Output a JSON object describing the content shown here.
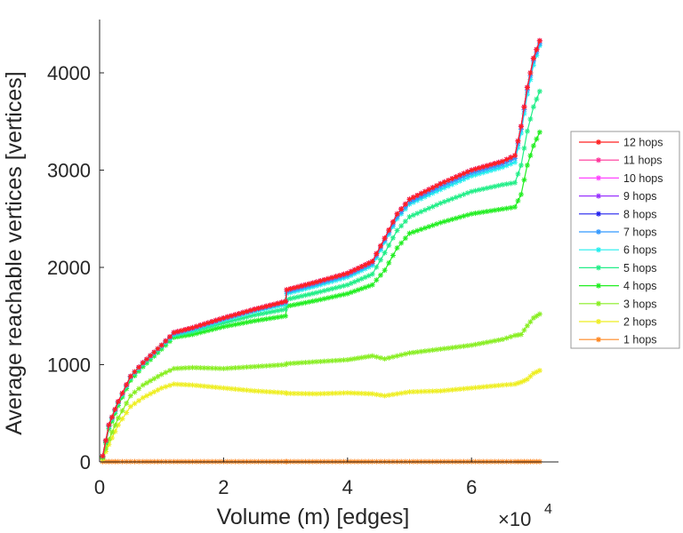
{
  "chart_data": {
    "type": "line",
    "title": "",
    "xlabel": "Volume (m) [edges]",
    "ylabel": "Average reachable vertices [vertices]",
    "x_multiplier": "×10",
    "x_multiplier_exp": "4",
    "xlim": [
      0,
      7.5
    ],
    "ylim": [
      0,
      4500
    ],
    "xticks": [
      0,
      2,
      4,
      6
    ],
    "xtick_labels": [
      "0",
      "2",
      "4",
      "6"
    ],
    "yticks": [
      0,
      1000,
      2000,
      3000,
      4000
    ],
    "ytick_labels": [
      "0",
      "1000",
      "2000",
      "3000",
      "4000"
    ],
    "grid": false,
    "legend_position": "right",
    "x": [
      0.05,
      0.15,
      0.3,
      0.5,
      0.7,
      1.0,
      1.2,
      1.5,
      2.0,
      2.5,
      3.0,
      3.02,
      3.5,
      4.0,
      4.4,
      4.6,
      4.8,
      5.0,
      5.5,
      6.0,
      6.5,
      6.7,
      6.8,
      6.9,
      7.0,
      7.1
    ],
    "series": [
      {
        "name": "12 hops",
        "color": "#ff2020",
        "values": [
          60,
          380,
          620,
          880,
          1020,
          1200,
          1330,
          1380,
          1480,
          1570,
          1650,
          1770,
          1850,
          1940,
          2060,
          2300,
          2550,
          2700,
          2860,
          3000,
          3090,
          3150,
          3450,
          3850,
          4150,
          4330
        ]
      },
      {
        "name": "11 hops",
        "color": "#ff3399",
        "values": [
          60,
          380,
          620,
          880,
          1020,
          1200,
          1330,
          1380,
          1480,
          1570,
          1650,
          1770,
          1850,
          1940,
          2060,
          2300,
          2550,
          2700,
          2860,
          3000,
          3090,
          3150,
          3450,
          3850,
          4150,
          4330
        ]
      },
      {
        "name": "10 hops",
        "color": "#ff44ff",
        "values": [
          60,
          380,
          620,
          880,
          1020,
          1200,
          1330,
          1380,
          1480,
          1570,
          1650,
          1770,
          1850,
          1940,
          2060,
          2300,
          2550,
          2700,
          2860,
          3000,
          3090,
          3150,
          3450,
          3850,
          4150,
          4330
        ]
      },
      {
        "name": "9 hops",
        "color": "#9933ff",
        "values": [
          60,
          380,
          620,
          880,
          1020,
          1200,
          1330,
          1380,
          1480,
          1570,
          1650,
          1770,
          1850,
          1940,
          2060,
          2300,
          2550,
          2700,
          2860,
          3000,
          3090,
          3150,
          3450,
          3850,
          4150,
          4330
        ]
      },
      {
        "name": "8 hops",
        "color": "#2222ee",
        "values": [
          60,
          380,
          620,
          880,
          1020,
          1200,
          1330,
          1380,
          1480,
          1570,
          1650,
          1770,
          1850,
          1940,
          2060,
          2300,
          2550,
          2700,
          2860,
          3000,
          3090,
          3150,
          3450,
          3850,
          4150,
          4330
        ]
      },
      {
        "name": "7 hops",
        "color": "#3399ff",
        "values": [
          60,
          380,
          620,
          880,
          1020,
          1200,
          1320,
          1370,
          1470,
          1560,
          1640,
          1750,
          1830,
          1920,
          2040,
          2280,
          2520,
          2670,
          2830,
          2970,
          3060,
          3120,
          3420,
          3820,
          4120,
          4300
        ]
      },
      {
        "name": "6 hops",
        "color": "#22eeee",
        "values": [
          60,
          370,
          610,
          870,
          1010,
          1190,
          1310,
          1360,
          1460,
          1550,
          1620,
          1730,
          1810,
          1900,
          2020,
          2260,
          2500,
          2650,
          2800,
          2940,
          3030,
          3080,
          3380,
          3780,
          4080,
          4280
        ]
      },
      {
        "name": "5 hops",
        "color": "#22ee88",
        "values": [
          55,
          360,
          600,
          860,
          1000,
          1180,
          1300,
          1340,
          1430,
          1510,
          1570,
          1670,
          1740,
          1820,
          1930,
          2150,
          2380,
          2520,
          2660,
          2780,
          2850,
          2870,
          3050,
          3400,
          3650,
          3810
        ]
      },
      {
        "name": "4 hops",
        "color": "#22ee22",
        "values": [
          50,
          340,
          580,
          840,
          980,
          1160,
          1280,
          1310,
          1390,
          1450,
          1500,
          1600,
          1660,
          1730,
          1820,
          1970,
          2200,
          2350,
          2460,
          2550,
          2600,
          2620,
          2750,
          3050,
          3250,
          3390
        ]
      },
      {
        "name": "3 hops",
        "color": "#88ee22",
        "values": [
          40,
          230,
          450,
          680,
          790,
          900,
          960,
          970,
          960,
          980,
          1000,
          1010,
          1030,
          1050,
          1090,
          1060,
          1090,
          1120,
          1160,
          1200,
          1260,
          1300,
          1310,
          1400,
          1480,
          1520
        ]
      },
      {
        "name": "2 hops",
        "color": "#eeee22",
        "values": [
          30,
          180,
          380,
          570,
          660,
          760,
          800,
          790,
          760,
          730,
          710,
          705,
          700,
          710,
          700,
          680,
          700,
          720,
          730,
          760,
          790,
          800,
          820,
          850,
          910,
          940
        ]
      },
      {
        "name": "1 hops",
        "color": "#ff8822",
        "values": [
          3,
          3,
          3,
          3,
          3,
          3,
          3,
          3,
          3,
          3,
          3,
          3,
          3,
          3,
          3,
          3,
          3,
          3,
          3,
          3,
          3,
          3,
          3,
          3,
          3,
          3
        ]
      }
    ]
  }
}
